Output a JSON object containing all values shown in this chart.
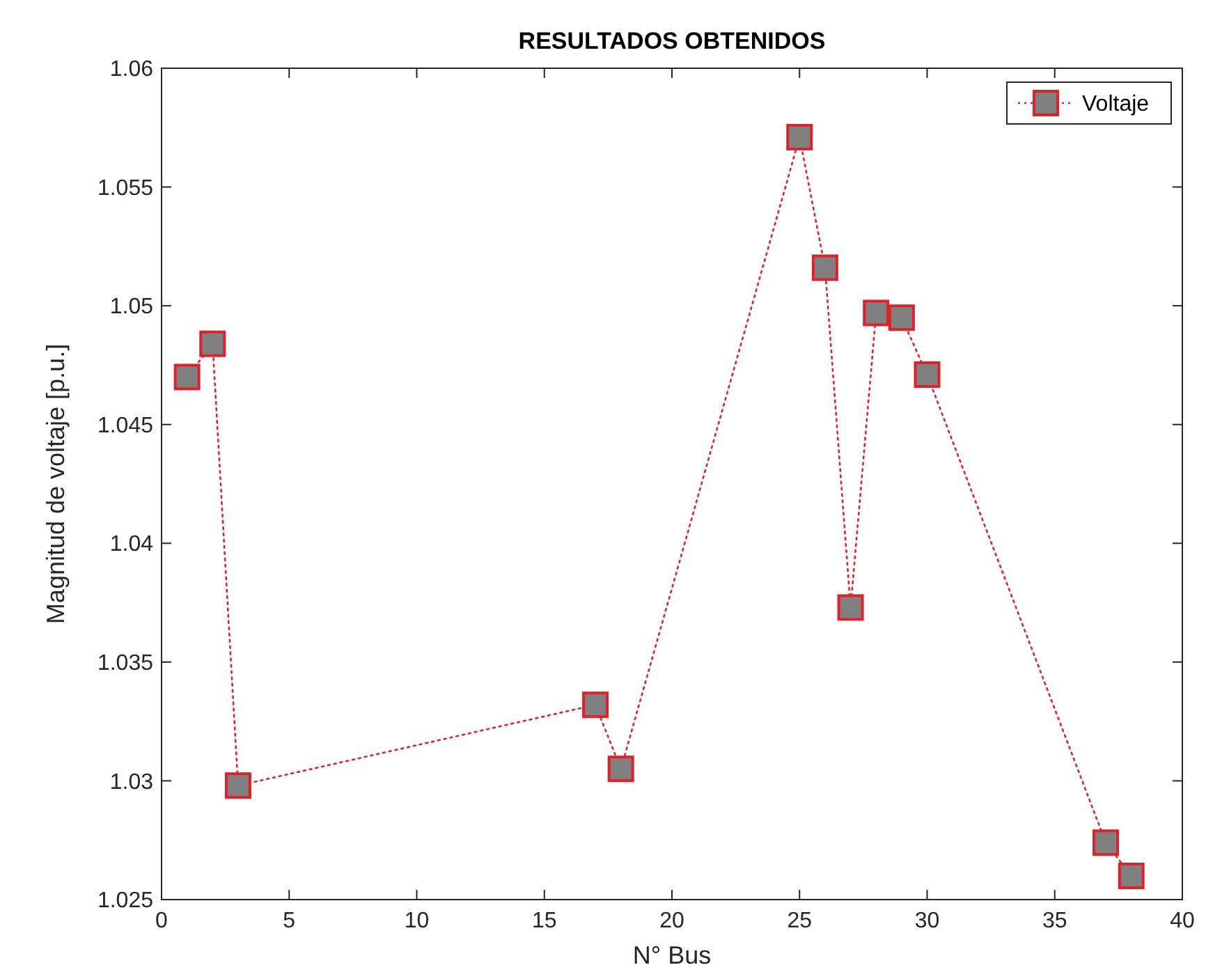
{
  "chart_data": {
    "type": "line",
    "title": "RESULTADOS OBTENIDOS",
    "xlabel": "N° Bus",
    "ylabel": "Magnitud de voltaje [p.u.]",
    "x": [
      1,
      2,
      3,
      17,
      18,
      25,
      26,
      27,
      28,
      29,
      30,
      37,
      38
    ],
    "series": [
      {
        "name": "Voltaje",
        "color": "#e0202a",
        "values": [
          1.047,
          1.0484,
          1.0298,
          1.0332,
          1.0305,
          1.0571,
          1.0516,
          1.0373,
          1.0497,
          1.0495,
          1.0471,
          1.0274,
          1.026
        ]
      }
    ],
    "xlim": [
      0,
      40
    ],
    "xticks": [
      0,
      5,
      10,
      15,
      20,
      25,
      30,
      35,
      40
    ],
    "ylim": [
      1.025,
      1.06
    ],
    "yticks": [
      {
        "value": 1.025,
        "label": "1.025"
      },
      {
        "value": 1.03,
        "label": "1.03"
      },
      {
        "value": 1.035,
        "label": "1.035"
      },
      {
        "value": 1.04,
        "label": "1.04"
      },
      {
        "value": 1.045,
        "label": "1.045"
      },
      {
        "value": 1.05,
        "label": "1.05"
      },
      {
        "value": 1.055,
        "label": "1.055"
      },
      {
        "value": 1.06,
        "label": "1.06"
      }
    ],
    "marker": "square",
    "line_style": "dotted",
    "legend": "top right",
    "grid": false
  }
}
